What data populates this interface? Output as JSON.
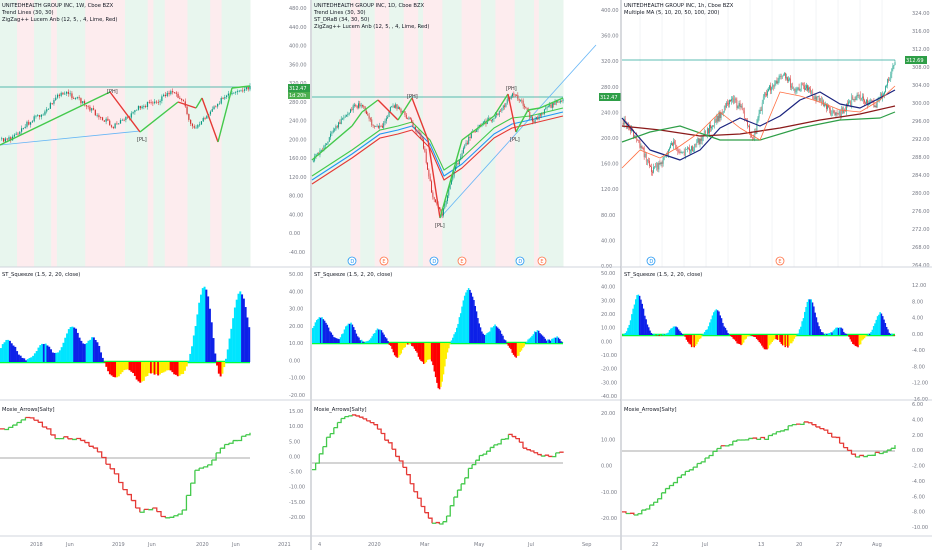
{
  "colors": {
    "bg": "#ffffff",
    "up": "#089981",
    "down": "#d32f2f",
    "grid": "#e6e8ee",
    "scale": "#787b86",
    "lime": "#43c94b",
    "red": "#e53935",
    "blue": "#2196f3",
    "navy": "#1a237e",
    "darkred": "#8b1a1a",
    "green": "#2e9e47",
    "orange": "#ff7043",
    "sq_lime": "#00ff3c",
    "sq_cyan": "#00e5ff",
    "sq_blue": "#0d21e8",
    "sq_red": "#ff0000",
    "sq_yellow": "#ffee00",
    "bg_green": "#e8f6ee",
    "bg_red": "#fdecee",
    "price_tag": "#2e9e47",
    "price_tag2": "#4caf50"
  },
  "panes": [
    {
      "price": {
        "title": "UNITEDHEALTH GROUP INC, 1W, Cboe BZX",
        "indicators": [
          "Trend Lines (30, 30)",
          "ZigZag++ Lucem Anb (12, 5, , 4, Lime, Red)"
        ],
        "axis_ticks": [
          "480.00",
          "440.00",
          "400.00",
          "360.00",
          "320.00",
          "280.00",
          "240.00",
          "200.00",
          "160.00",
          "120.00",
          "80.00",
          "40.00",
          "0.00",
          "-40.00"
        ],
        "price_tag": "312.47",
        "price_tag2": "1d 20h",
        "pivots": [
          "[PH]",
          "[PL]"
        ]
      },
      "squeeze": {
        "title": "ST_Squeeze (1.5, 2, 20, close)",
        "axis_ticks": [
          "50.00",
          "40.00",
          "30.00",
          "20.00",
          "10.00",
          "0.00",
          "-10.00",
          "-20.00"
        ]
      },
      "arrows": {
        "title": "Moxie_Arrows[Salty]",
        "axis_ticks": [
          "15.00",
          "10.00",
          "5.00",
          "0.00",
          "-5.00",
          "-10.00",
          "-15.00",
          "-20.00"
        ]
      },
      "time_labels": [
        "2018",
        "Jun",
        "2019",
        "Jun",
        "2020",
        "Jun",
        "2021"
      ]
    },
    {
      "price": {
        "title": "UNITEDHEALTH GROUP INC, 1D, Cboe BZX",
        "indicators": [
          "Trend Lines (30, 30)",
          "ST_DRaB (34, 30, 50)",
          "ZigZag++ Lucem Anb (12, 5, , 4, Lime, Red)"
        ],
        "axis_ticks": [
          "400.00",
          "360.00",
          "320.00",
          "280.00",
          "240.00",
          "200.00",
          "160.00",
          "120.00",
          "80.00",
          "40.00",
          "0.00"
        ],
        "price_tag": "312.47",
        "pivots": [
          "[PH]",
          "[PH]",
          "[PL]",
          "[PL]"
        ],
        "event_markers": [
          "D",
          "E",
          "D",
          "E",
          "D",
          "E"
        ]
      },
      "squeeze": {
        "title": "ST_Squeeze (1.5, 2, 20, close)",
        "axis_ticks": [
          "50.00",
          "40.00",
          "30.00",
          "20.00",
          "10.00",
          "0.00",
          "-10.00",
          "-20.00",
          "-30.00",
          "-40.00"
        ]
      },
      "arrows": {
        "title": "Moxie_Arrows[Salty]",
        "axis_ticks": [
          "20.00",
          "10.00",
          "0.00",
          "-10.00",
          "-20.00"
        ]
      },
      "time_labels": [
        "4",
        "2020",
        "Mar",
        "May",
        "Jul",
        "Sep"
      ]
    },
    {
      "price": {
        "title": "UNITEDHEALTH GROUP INC, 1h, Cboe BZX",
        "indicators": [
          "Multiple MA (5, 10, 20, 50, 100, 200)"
        ],
        "axis_ticks": [
          "324.00",
          "316.00",
          "312.00",
          "308.00",
          "304.00",
          "300.00",
          "296.00",
          "292.00",
          "288.00",
          "284.00",
          "280.00",
          "276.00",
          "272.00",
          "268.00",
          "264.00"
        ],
        "price_tag": "312.69",
        "event_markers": [
          "D",
          "E"
        ]
      },
      "squeeze": {
        "title": "ST_Squeeze (1.5, 2, 20, close)",
        "axis_ticks": [
          "12.00",
          "8.00",
          "4.00",
          "0.00",
          "-4.00",
          "-8.00",
          "-12.00",
          "-16.00"
        ]
      },
      "arrows": {
        "title": "Moxie_Arrows[Salty]",
        "axis_ticks": [
          "6.00",
          "4.00",
          "2.00",
          "0.00",
          "-2.00",
          "-4.00",
          "-6.00",
          "-8.00",
          "-10.00"
        ]
      },
      "time_labels": [
        "22",
        "Jul",
        "13",
        "20",
        "27",
        "Aug"
      ]
    }
  ]
}
